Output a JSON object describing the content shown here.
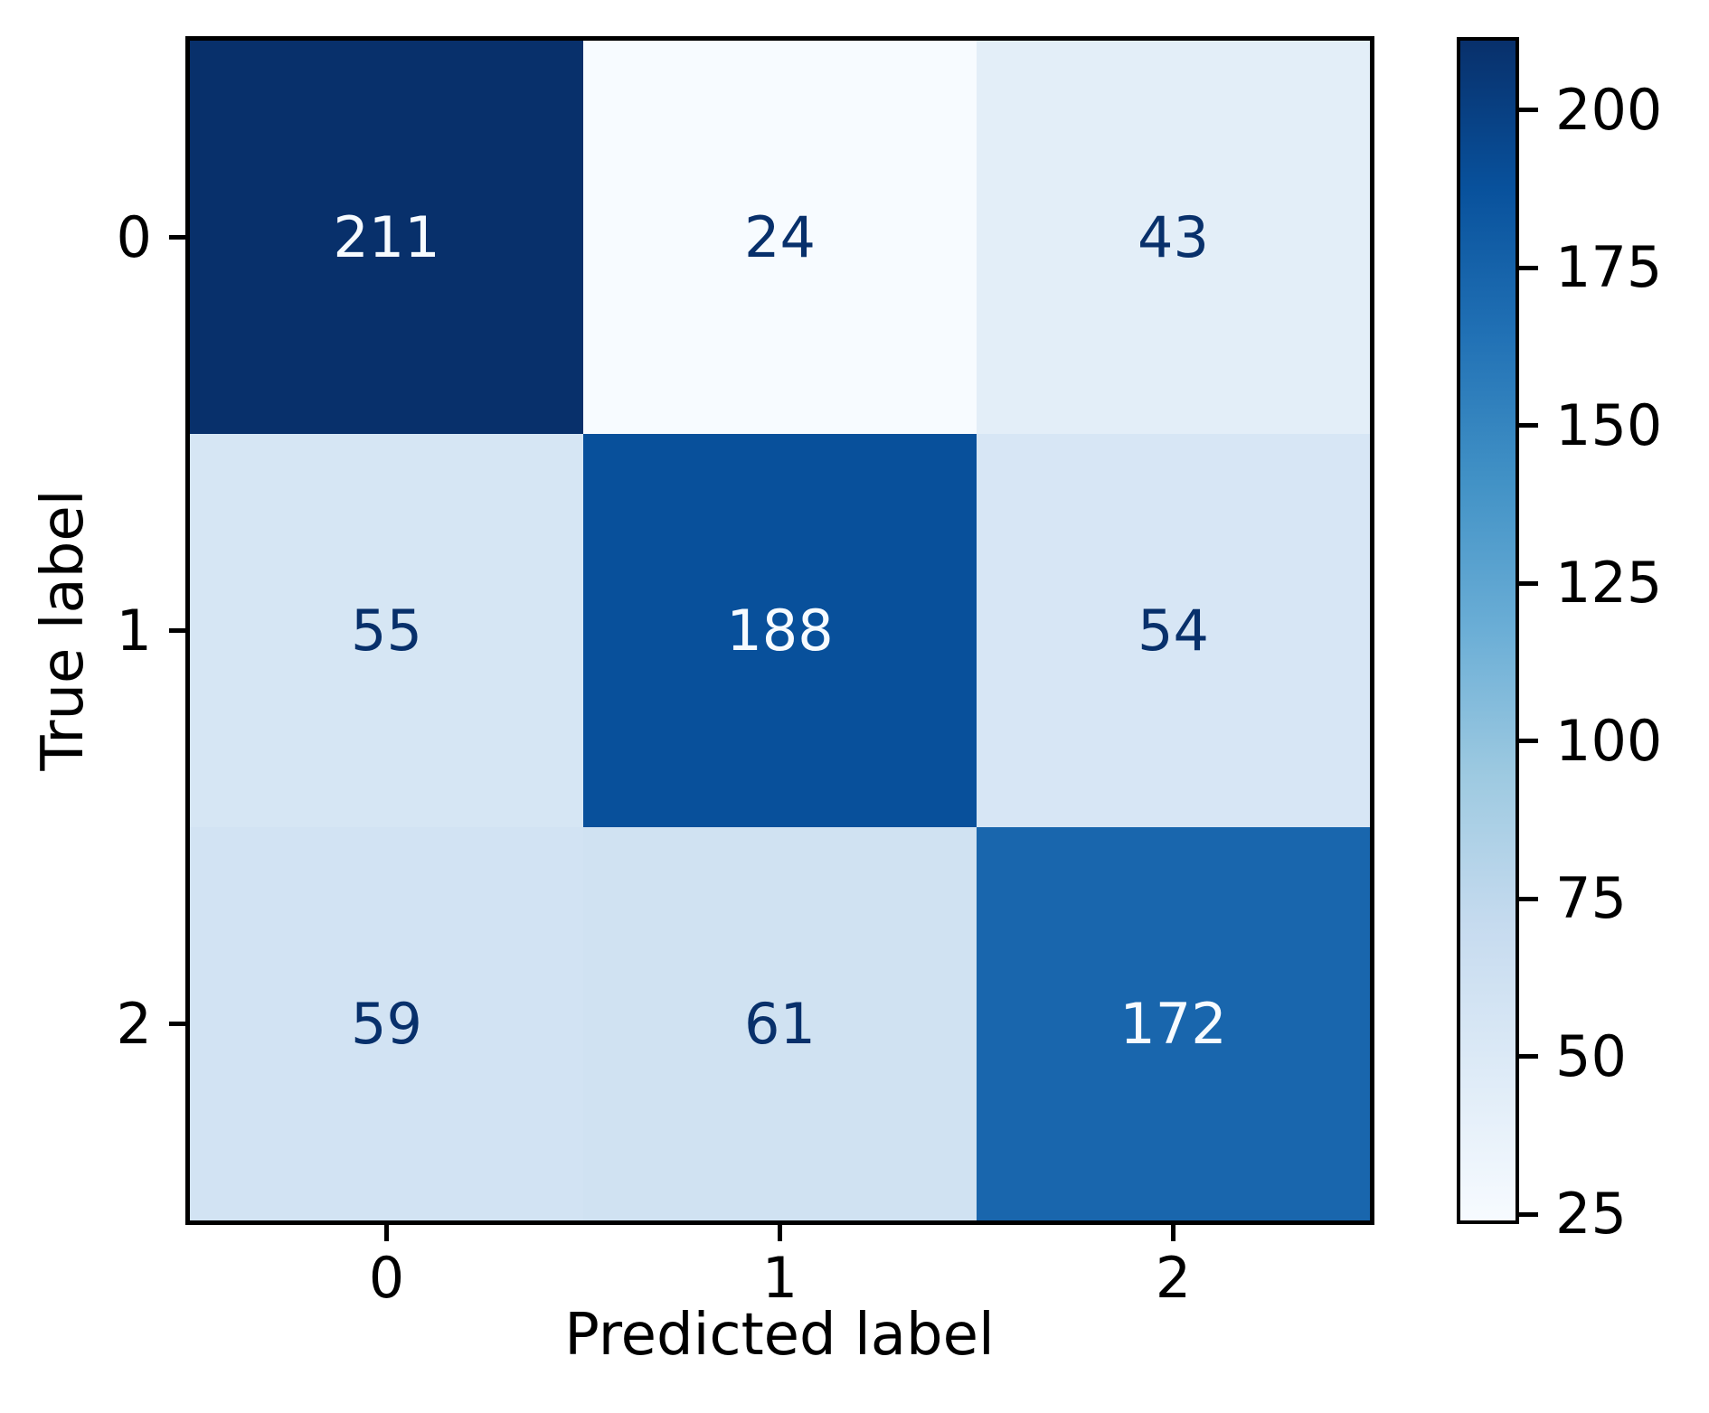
{
  "chart_data": {
    "type": "heatmap",
    "title": "",
    "xlabel": "Predicted label",
    "ylabel": "True label",
    "x_tick_labels": [
      "0",
      "1",
      "2"
    ],
    "y_tick_labels": [
      "0",
      "1",
      "2"
    ],
    "matrix": [
      [
        211,
        24,
        43
      ],
      [
        55,
        188,
        54
      ],
      [
        59,
        61,
        172
      ]
    ],
    "colormap": "Blues",
    "vmin": 24,
    "vmax": 211,
    "colorbar_ticks": [
      200,
      175,
      150,
      125,
      100,
      75,
      50,
      25
    ],
    "colorbar_position": "right",
    "grid": false
  },
  "colors": {
    "blues_stops": [
      "#f7fbff",
      "#deebf7",
      "#c6dbef",
      "#9ecae1",
      "#6baed6",
      "#4292c6",
      "#2171b5",
      "#08519c",
      "#08306b"
    ],
    "annotation_dark": "#08306b",
    "annotation_light": "#f7fbff",
    "spine": "#000000",
    "background": "#ffffff"
  }
}
